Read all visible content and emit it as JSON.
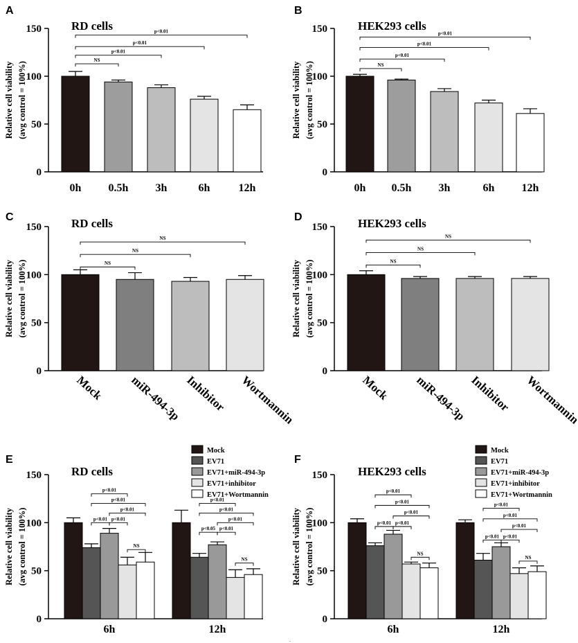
{
  "figure": {
    "footer_mark": "."
  },
  "styles": {
    "cond_colors": [
      "#221615",
      "#9d9d9d",
      "#bdbdbd",
      "#e4e4e4",
      "#ffffff"
    ],
    "treat_colors": [
      "#221615",
      "#7f7f7f",
      "#bdbdbd",
      "#e4e4e4"
    ],
    "group_colors": [
      "#221615",
      "#555555",
      "#999999",
      "#e4e4e4",
      "#ffffff"
    ]
  },
  "chart_data": [
    {
      "panel": "A",
      "type": "bar",
      "title": "RD cells",
      "ylabel_line1": "Relative cell viability",
      "ylabel_line2": "(avg control = 100%)",
      "ylim": [
        0,
        150
      ],
      "yticks": [
        "0",
        "50",
        "100",
        "150"
      ],
      "categories": [
        "0h",
        "0.5h",
        "3h",
        "6h",
        "12h"
      ],
      "values": [
        100,
        94,
        88,
        76,
        65
      ],
      "errors": [
        5,
        2,
        3,
        3,
        5
      ],
      "comparisons": [
        {
          "from": 0,
          "to": 1,
          "label": "NS",
          "y": 113
        },
        {
          "from": 0,
          "to": 2,
          "label": "p<0.01",
          "y": 122
        },
        {
          "from": 0,
          "to": 3,
          "label": "p<0.01",
          "y": 131
        },
        {
          "from": 0,
          "to": 4,
          "label": "p<0.01",
          "y": 143
        }
      ]
    },
    {
      "panel": "B",
      "type": "bar",
      "title": "HEK293 cells",
      "ylabel_line1": "Relative cell viability",
      "ylabel_line2": "(avg control = 100%)",
      "ylim": [
        0,
        150
      ],
      "yticks": [
        "0",
        "50",
        "100",
        "150"
      ],
      "categories": [
        "0h",
        "0.5h",
        "3h",
        "6h",
        "12h"
      ],
      "values": [
        100,
        96,
        84,
        72,
        61
      ],
      "errors": [
        2,
        1,
        3,
        3,
        5
      ],
      "comparisons": [
        {
          "from": 0,
          "to": 1,
          "label": "NS",
          "y": 108
        },
        {
          "from": 0,
          "to": 2,
          "label": "p<0.01",
          "y": 118
        },
        {
          "from": 0,
          "to": 3,
          "label": "p<0.01",
          "y": 130
        },
        {
          "from": 0,
          "to": 4,
          "label": "p<0.01",
          "y": 141
        }
      ]
    },
    {
      "panel": "C",
      "type": "bar",
      "title": "RD cells",
      "ylabel_line1": "Relative cell viability",
      "ylabel_line2": "(avg control = 100%)",
      "ylim": [
        0,
        150
      ],
      "yticks": [
        "0",
        "50",
        "100",
        "150"
      ],
      "categories": [
        "Mock",
        "miR-494-3p",
        "Inhibitor",
        "Wortmannin"
      ],
      "values": [
        100,
        95,
        93,
        95
      ],
      "errors": [
        5,
        7,
        4,
        4
      ],
      "comparisons": [
        {
          "from": 0,
          "to": 1,
          "label": "NS",
          "y": 108
        },
        {
          "from": 0,
          "to": 2,
          "label": "NS",
          "y": 121
        },
        {
          "from": 0,
          "to": 3,
          "label": "NS",
          "y": 134
        }
      ]
    },
    {
      "panel": "D",
      "type": "bar",
      "title": "HEK293 cells",
      "ylabel_line1": "Relative cell viability",
      "ylabel_line2": "(avg control = 100%)",
      "ylim": [
        0,
        150
      ],
      "yticks": [
        "0",
        "50",
        "100",
        "150"
      ],
      "categories": [
        "Mock",
        "miR-494-3p",
        "Inhibitor",
        "Wortmannin"
      ],
      "values": [
        100,
        96,
        96,
        96
      ],
      "errors": [
        4,
        2,
        2,
        2
      ],
      "comparisons": [
        {
          "from": 0,
          "to": 1,
          "label": "NS",
          "y": 110
        },
        {
          "from": 0,
          "to": 2,
          "label": "NS",
          "y": 123
        },
        {
          "from": 0,
          "to": 3,
          "label": "NS",
          "y": 136
        }
      ]
    },
    {
      "panel": "E",
      "type": "bar",
      "title": "RD cells",
      "ylabel_line1": "Relative cell viability",
      "ylabel_line2": "(avg control = 100%)",
      "ylim": [
        0,
        150
      ],
      "yticks": [
        "0",
        "50",
        "100",
        "150"
      ],
      "categories": [
        "6h",
        "12h"
      ],
      "series": [
        {
          "name": "Mock",
          "values": [
            100,
            100
          ],
          "errors": [
            5,
            13
          ]
        },
        {
          "name": "EV71",
          "values": [
            74,
            64
          ],
          "errors": [
            4,
            4
          ]
        },
        {
          "name": "EV71+miR-494-3p",
          "values": [
            89,
            77
          ],
          "errors": [
            5,
            3
          ]
        },
        {
          "name": "EV71+inhibitor",
          "values": [
            56,
            43
          ],
          "errors": [
            8,
            8
          ]
        },
        {
          "name": "EV71+Wortmannin",
          "values": [
            59,
            46
          ],
          "errors": [
            10,
            6
          ]
        }
      ],
      "comparisons": [
        [
          {
            "from": 1,
            "to": 2,
            "label": "p<0.01",
            "y": 100
          },
          {
            "from": 2,
            "to": 3,
            "label": "p<0.01",
            "y": 100
          },
          {
            "from": 3,
            "to": 4,
            "label": "NS",
            "y": 72
          },
          {
            "from": 2,
            "to": 4,
            "label": "p<0.01",
            "y": 110
          },
          {
            "from": 1,
            "to": 4,
            "label": "p<0.01",
            "y": 120
          },
          {
            "from": 1,
            "to": 3,
            "label": "p<0.01",
            "y": 130
          }
        ],
        [
          {
            "from": 1,
            "to": 2,
            "label": "p<0.05",
            "y": 90
          },
          {
            "from": 2,
            "to": 3,
            "label": "p<0.01",
            "y": 90
          },
          {
            "from": 3,
            "to": 4,
            "label": "NS",
            "y": 58
          },
          {
            "from": 2,
            "to": 4,
            "label": "p<0.01",
            "y": 100
          },
          {
            "from": 1,
            "to": 4,
            "label": "p<0.01",
            "y": 110
          },
          {
            "from": 1,
            "to": 3,
            "label": "p<0.01",
            "y": 120
          }
        ]
      ]
    },
    {
      "panel": "F",
      "type": "bar",
      "title": "HEK293 cells",
      "ylabel_line1": "Relative cell viability",
      "ylabel_line2": "(avg control = 100%)",
      "ylim": [
        0,
        150
      ],
      "yticks": [
        "0",
        "50",
        "100",
        "150"
      ],
      "categories": [
        "6h",
        "12h"
      ],
      "series": [
        {
          "name": "Mock",
          "values": [
            100,
            100
          ],
          "errors": [
            4,
            3
          ]
        },
        {
          "name": "EV71",
          "values": [
            76,
            61
          ],
          "errors": [
            3,
            7
          ]
        },
        {
          "name": "EV71+miR-494-3p",
          "values": [
            88,
            75
          ],
          "errors": [
            4,
            4
          ]
        },
        {
          "name": "EV71+inhibitor",
          "values": [
            57,
            47
          ],
          "errors": [
            2,
            6
          ]
        },
        {
          "name": "EV71+Wortmannin",
          "values": [
            53,
            49
          ],
          "errors": [
            5,
            6
          ]
        }
      ],
      "comparisons": [
        [
          {
            "from": 1,
            "to": 2,
            "label": "p<0.01",
            "y": 96
          },
          {
            "from": 2,
            "to": 3,
            "label": "p<0.01",
            "y": 96
          },
          {
            "from": 3,
            "to": 4,
            "label": "NS",
            "y": 64
          },
          {
            "from": 2,
            "to": 4,
            "label": "p<0.01",
            "y": 107
          },
          {
            "from": 1,
            "to": 4,
            "label": "p<0.01",
            "y": 118
          },
          {
            "from": 1,
            "to": 3,
            "label": "p<0.01",
            "y": 129
          }
        ],
        [
          {
            "from": 1,
            "to": 2,
            "label": "p<0.01",
            "y": 82
          },
          {
            "from": 2,
            "to": 3,
            "label": "p<0.01",
            "y": 82
          },
          {
            "from": 3,
            "to": 4,
            "label": "NS",
            "y": 60
          },
          {
            "from": 2,
            "to": 4,
            "label": "p<0.01",
            "y": 93
          },
          {
            "from": 1,
            "to": 4,
            "label": "p<0.01",
            "y": 104
          },
          {
            "from": 1,
            "to": 3,
            "label": "p<0.01",
            "y": 115
          }
        ]
      ]
    }
  ]
}
